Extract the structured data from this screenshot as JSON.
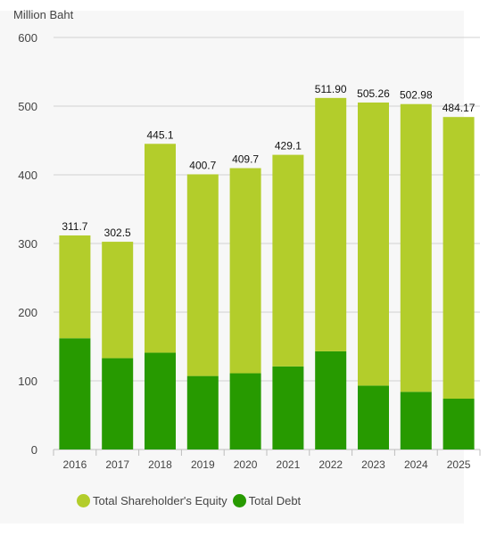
{
  "chart_data": {
    "type": "bar",
    "stacked": true,
    "ylabel": "Million Baht",
    "ylim": [
      0,
      600
    ],
    "yticks": [
      0,
      100,
      200,
      300,
      400,
      500,
      600
    ],
    "grid": true,
    "legend_position": "bottom-left",
    "categories": [
      "2016",
      "2017",
      "2018",
      "2019",
      "2020",
      "2021",
      "2022",
      "2023",
      "2024",
      "2025"
    ],
    "series": [
      {
        "name": "Total Debt",
        "color": "#279a00",
        "values": [
          162,
          133,
          141,
          107,
          111,
          121,
          143,
          93,
          84,
          74
        ]
      },
      {
        "name": "Total Shareholder's Equity",
        "color": "#b3cd2b",
        "values": [
          149.7,
          169.5,
          304.1,
          293.7,
          298.7,
          308.1,
          368.9,
          412.26,
          418.98,
          410.17
        ]
      }
    ],
    "totals": [
      "311.7",
      "302.5",
      "445.1",
      "400.7",
      "409.7",
      "429.1",
      "511.90",
      "505.26",
      "502.98",
      "484.17"
    ]
  },
  "legend": [
    {
      "label": "Total Shareholder's Equity",
      "color": "#b3cd2b"
    },
    {
      "label": "Total Debt",
      "color": "#279a00"
    }
  ]
}
